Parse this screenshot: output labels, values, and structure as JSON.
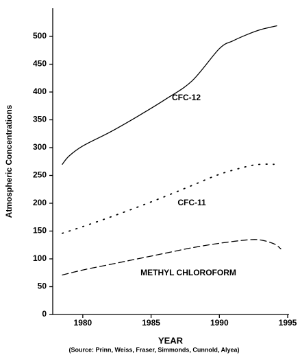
{
  "chart_data": {
    "type": "line",
    "x_label": "YEAR",
    "y_label": "Atmospheric Concentrations",
    "source": "(Source: Prinn, Weiss, Fraser, Simmonds, Cunnold, Alyea)",
    "xlim": [
      1977.8,
      1995
    ],
    "xticks": [
      1980,
      1985,
      1990,
      1995
    ],
    "ylim": [
      0,
      550
    ],
    "yticks": [
      0,
      50,
      100,
      150,
      200,
      250,
      300,
      350,
      400,
      450,
      500
    ],
    "grid": false,
    "series": [
      {
        "name": "CFC-12",
        "color": "#000000",
        "dash": "solid",
        "x": [
          1978.5,
          1979,
          1980,
          1982,
          1984,
          1986,
          1988,
          1990,
          1991,
          1992,
          1993,
          1994.2
        ],
        "values": [
          270,
          285,
          303,
          328,
          356,
          386,
          420,
          478,
          492,
          503,
          512,
          519
        ]
      },
      {
        "name": "CFC-11",
        "color": "#000000",
        "dash": "dotted",
        "x": [
          1978.5,
          1980,
          1982,
          1984,
          1986,
          1988,
          1990,
          1992,
          1993,
          1994
        ],
        "values": [
          146,
          158,
          175,
          193,
          212,
          232,
          252,
          266,
          270,
          270
        ]
      },
      {
        "name": "METHYL CHLOROFORM",
        "color": "#000000",
        "dash": "dashed",
        "x": [
          1978.5,
          1980,
          1982,
          1984,
          1986,
          1988,
          1990,
          1992,
          1993,
          1994,
          1994.5
        ],
        "values": [
          71,
          80,
          90,
          100,
          110,
          120,
          128,
          134,
          134,
          127,
          118
        ]
      }
    ]
  }
}
